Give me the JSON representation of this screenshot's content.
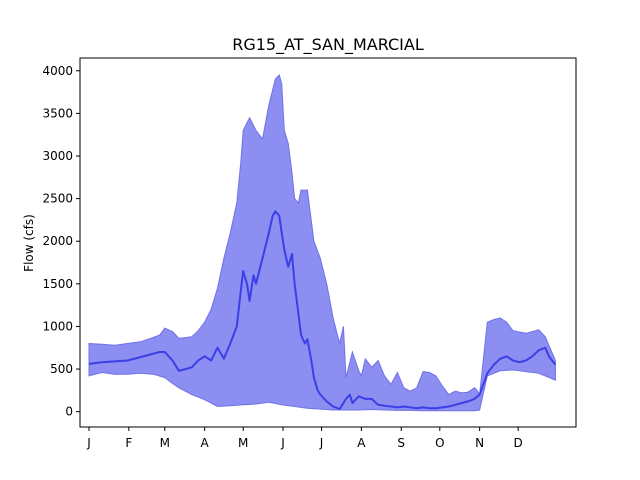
{
  "chart_data": {
    "type": "area",
    "title": "RG15_AT_SAN_MARCIAL",
    "xlabel": "",
    "ylabel": "Flow (cfs)",
    "ylim": [
      -180,
      4150
    ],
    "xlim": [
      -7,
      379
    ],
    "yticks": [
      0,
      500,
      1000,
      1500,
      2000,
      2500,
      3000,
      3500,
      4000
    ],
    "xticks": [
      {
        "day": 0,
        "label": "J"
      },
      {
        "day": 31,
        "label": "F"
      },
      {
        "day": 59,
        "label": "M"
      },
      {
        "day": 90,
        "label": "A"
      },
      {
        "day": 120,
        "label": "M"
      },
      {
        "day": 151,
        "label": "J"
      },
      {
        "day": 181,
        "label": "J"
      },
      {
        "day": 212,
        "label": "A"
      },
      {
        "day": 243,
        "label": "S"
      },
      {
        "day": 273,
        "label": "O"
      },
      {
        "day": 304,
        "label": "N"
      },
      {
        "day": 334,
        "label": "D"
      }
    ],
    "grid": false,
    "colors": {
      "band": "#8c8ef2",
      "band_edge": "#6f72e8",
      "median": "#3b3fe6"
    },
    "series": [
      {
        "role": "upper",
        "x": [
          0,
          10,
          20,
          30,
          40,
          50,
          55,
          59,
          65,
          70,
          80,
          85,
          90,
          95,
          100,
          105,
          110,
          115,
          118,
          120,
          125,
          130,
          135,
          140,
          145,
          148,
          150,
          152,
          155,
          158,
          160,
          163,
          165,
          170,
          175,
          180,
          185,
          190,
          195,
          198,
          200,
          205,
          210,
          212,
          215,
          220,
          225,
          230,
          235,
          240,
          245,
          250,
          255,
          260,
          265,
          270,
          275,
          280,
          285,
          290,
          295,
          300,
          302,
          304,
          310,
          315,
          320,
          325,
          330,
          340,
          350,
          355,
          363
        ],
        "y": [
          800,
          790,
          780,
          800,
          820,
          870,
          900,
          980,
          940,
          860,
          880,
          950,
          1050,
          1200,
          1450,
          1800,
          2100,
          2450,
          2900,
          3300,
          3450,
          3300,
          3200,
          3600,
          3900,
          3950,
          3850,
          3300,
          3150,
          2800,
          2500,
          2450,
          2600,
          2600,
          2000,
          1800,
          1500,
          1100,
          800,
          1000,
          400,
          700,
          480,
          420,
          620,
          520,
          600,
          420,
          320,
          460,
          280,
          240,
          280,
          470,
          460,
          420,
          300,
          200,
          240,
          220,
          230,
          280,
          250,
          200,
          1050,
          1080,
          1100,
          1050,
          950,
          920,
          960,
          880,
          600
        ]
      },
      {
        "role": "lower",
        "x": [
          0,
          10,
          20,
          30,
          40,
          50,
          59,
          65,
          70,
          80,
          90,
          95,
          100,
          110,
          120,
          130,
          140,
          150,
          160,
          170,
          180,
          190,
          200,
          210,
          220,
          230,
          240,
          250,
          260,
          270,
          280,
          290,
          300,
          304,
          310,
          320,
          330,
          340,
          350,
          363
        ],
        "y": [
          420,
          460,
          440,
          440,
          450,
          440,
          400,
          330,
          280,
          200,
          140,
          100,
          60,
          70,
          80,
          90,
          110,
          80,
          60,
          40,
          30,
          20,
          20,
          20,
          25,
          20,
          15,
          15,
          10,
          10,
          10,
          10,
          10,
          20,
          420,
          480,
          490,
          470,
          450,
          370
        ]
      },
      {
        "role": "median",
        "x": [
          0,
          10,
          20,
          30,
          40,
          50,
          55,
          59,
          65,
          70,
          75,
          80,
          85,
          90,
          95,
          100,
          105,
          110,
          115,
          118,
          120,
          123,
          125,
          128,
          130,
          135,
          140,
          143,
          145,
          148,
          150,
          152,
          155,
          158,
          160,
          163,
          165,
          168,
          170,
          173,
          175,
          178,
          180,
          185,
          190,
          195,
          200,
          203,
          205,
          210,
          215,
          220,
          225,
          230,
          235,
          240,
          245,
          250,
          255,
          260,
          265,
          270,
          275,
          280,
          285,
          290,
          295,
          300,
          304,
          310,
          315,
          320,
          325,
          330,
          335,
          340,
          345,
          350,
          355,
          358,
          363
        ],
        "y": [
          560,
          580,
          590,
          600,
          640,
          680,
          700,
          700,
          600,
          480,
          500,
          520,
          600,
          650,
          600,
          750,
          620,
          800,
          1000,
          1400,
          1650,
          1500,
          1300,
          1600,
          1500,
          1800,
          2100,
          2300,
          2350,
          2300,
          2100,
          1900,
          1700,
          1850,
          1500,
          1150,
          900,
          800,
          850,
          600,
          400,
          250,
          200,
          120,
          60,
          30,
          150,
          200,
          100,
          180,
          150,
          150,
          80,
          70,
          60,
          50,
          60,
          50,
          40,
          50,
          40,
          40,
          50,
          60,
          80,
          100,
          120,
          150,
          200,
          450,
          550,
          620,
          650,
          600,
          580,
          600,
          650,
          720,
          750,
          650,
          550
        ]
      }
    ]
  }
}
